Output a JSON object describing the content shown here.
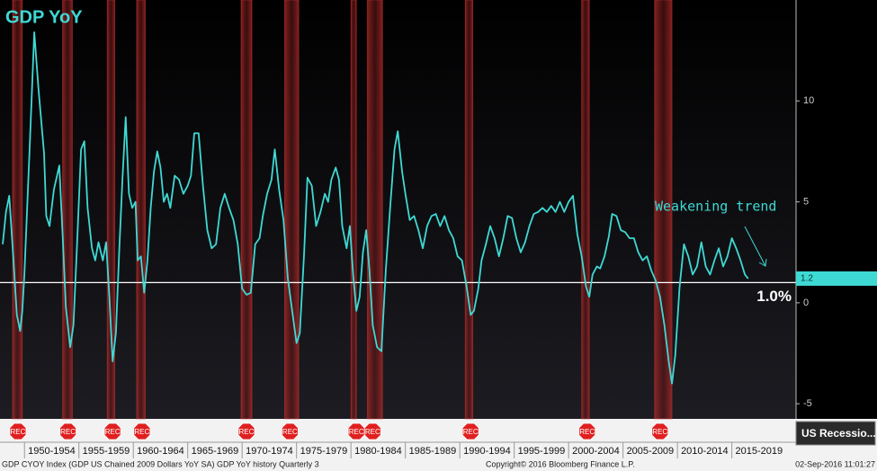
{
  "chart_data": {
    "type": "line",
    "title": "GDP YoY",
    "color": "#3fd9d4",
    "x": [
      1948.0,
      1948.3,
      1948.6,
      1949.0,
      1949.3,
      1949.6,
      1949.8,
      1950.0,
      1950.5,
      1950.9,
      1951.3,
      1951.8,
      1952.0,
      1952.3,
      1952.7,
      1953.2,
      1953.5,
      1953.8,
      1954.2,
      1954.5,
      1954.8,
      1955.2,
      1955.5,
      1955.8,
      1956.2,
      1956.5,
      1956.8,
      1957.2,
      1957.5,
      1957.8,
      1958.1,
      1958.4,
      1958.7,
      1959.0,
      1959.3,
      1959.6,
      1959.9,
      1960.2,
      1960.4,
      1960.7,
      1961.0,
      1961.3,
      1961.6,
      1961.9,
      1962.2,
      1962.5,
      1962.8,
      1963.1,
      1963.4,
      1963.8,
      1964.2,
      1964.6,
      1965.0,
      1965.3,
      1965.6,
      1966.0,
      1966.4,
      1966.8,
      1967.2,
      1967.6,
      1968.0,
      1968.4,
      1968.8,
      1969.2,
      1969.6,
      1970.0,
      1970.4,
      1970.8,
      1971.2,
      1971.6,
      1971.9,
      1972.3,
      1972.7,
      1973.0,
      1973.4,
      1973.8,
      1974.2,
      1974.6,
      1975.0,
      1975.3,
      1975.7,
      1976.0,
      1976.4,
      1976.8,
      1977.2,
      1977.6,
      1977.9,
      1978.2,
      1978.6,
      1978.9,
      1979.2,
      1979.6,
      1979.9,
      1980.2,
      1980.5,
      1980.8,
      1981.1,
      1981.4,
      1981.7,
      1982.0,
      1982.4,
      1982.8,
      1983.2,
      1983.6,
      1984.0,
      1984.3,
      1984.7,
      1985.0,
      1985.4,
      1985.8,
      1986.2,
      1986.6,
      1987.0,
      1987.4,
      1987.8,
      1988.2,
      1988.6,
      1989.0,
      1989.4,
      1989.8,
      1990.2,
      1990.6,
      1991.0,
      1991.3,
      1991.7,
      1992.0,
      1992.4,
      1992.8,
      1993.2,
      1993.6,
      1994.0,
      1994.4,
      1994.8,
      1995.2,
      1995.6,
      1996.0,
      1996.4,
      1996.8,
      1997.2,
      1997.6,
      1998.0,
      1998.4,
      1998.8,
      1999.2,
      1999.6,
      2000.0,
      2000.4,
      2000.8,
      2001.2,
      2001.6,
      2001.9,
      2002.2,
      2002.6,
      2002.9,
      2003.3,
      2003.7,
      2004.0,
      2004.4,
      2004.8,
      2005.2,
      2005.6,
      2006.0,
      2006.4,
      2006.8,
      2007.2,
      2007.6,
      2008.0,
      2008.4,
      2008.8,
      2009.2,
      2009.5,
      2009.8,
      2010.2,
      2010.6,
      2011.0,
      2011.4,
      2011.8,
      2012.2,
      2012.6,
      2013.0,
      2013.4,
      2013.8,
      2014.2,
      2014.6,
      2015.0,
      2015.4,
      2015.8,
      2016.2,
      2016.5
    ],
    "values": [
      2.9,
      4.5,
      5.3,
      2.0,
      -0.6,
      -1.4,
      -0.4,
      1.5,
      8.0,
      13.4,
      10.5,
      7.4,
      4.3,
      3.8,
      5.6,
      6.8,
      3.4,
      -0.2,
      -2.2,
      -1.1,
      2.5,
      7.6,
      8.0,
      4.7,
      2.7,
      2.1,
      3.0,
      2.1,
      3.0,
      0.3,
      -2.9,
      -1.5,
      2.5,
      6.1,
      9.2,
      5.4,
      4.7,
      5.0,
      2.1,
      2.3,
      0.5,
      2.1,
      4.7,
      6.5,
      7.5,
      6.7,
      5.0,
      5.4,
      4.7,
      6.3,
      6.1,
      5.4,
      5.8,
      6.3,
      8.4,
      8.4,
      5.8,
      3.6,
      2.7,
      2.9,
      4.7,
      5.4,
      4.7,
      4.1,
      2.9,
      0.7,
      0.4,
      0.5,
      2.9,
      3.2,
      4.3,
      5.4,
      6.1,
      7.6,
      5.6,
      4.1,
      1.2,
      -0.4,
      -2.0,
      -1.5,
      2.5,
      6.2,
      5.8,
      3.8,
      4.5,
      5.4,
      5.0,
      6.1,
      6.7,
      6.1,
      3.8,
      2.7,
      3.8,
      1.4,
      -0.4,
      0.3,
      2.5,
      3.6,
      1.6,
      -1.1,
      -2.2,
      -2.4,
      1.6,
      4.7,
      7.6,
      8.5,
      6.5,
      5.4,
      4.1,
      4.3,
      3.6,
      2.7,
      3.8,
      4.3,
      4.4,
      3.8,
      4.3,
      3.6,
      3.2,
      2.3,
      2.1,
      0.9,
      -0.6,
      -0.4,
      0.7,
      2.1,
      2.9,
      3.8,
      3.2,
      2.3,
      3.2,
      4.3,
      4.2,
      3.2,
      2.5,
      3.0,
      3.8,
      4.4,
      4.5,
      4.7,
      4.5,
      4.8,
      4.5,
      5.0,
      4.5,
      5.0,
      5.3,
      3.4,
      2.3,
      0.8,
      0.3,
      1.4,
      1.8,
      1.7,
      2.3,
      3.3,
      4.4,
      4.3,
      3.6,
      3.5,
      3.2,
      3.2,
      2.5,
      2.1,
      2.3,
      1.6,
      1.1,
      0.3,
      -1.1,
      -2.9,
      -4.0,
      -2.6,
      0.8,
      2.9,
      2.3,
      1.4,
      1.8,
      3.0,
      1.8,
      1.4,
      2.1,
      2.7,
      1.8,
      2.3,
      3.2,
      2.7,
      2.1,
      1.4,
      1.2
    ],
    "xlim": [
      1947.75,
      2020.9
    ],
    "ylim": [
      -5.75,
      15
    ],
    "yticks": [
      -5,
      0,
      5,
      10
    ],
    "xticks": [
      {
        "value": 1950,
        "label": "1950-1954"
      },
      {
        "value": 1955,
        "label": "1955-1959"
      },
      {
        "value": 1960,
        "label": "1960-1964"
      },
      {
        "value": 1965,
        "label": "1965-1969"
      },
      {
        "value": 1970,
        "label": "1970-1974"
      },
      {
        "value": 1975,
        "label": "1975-1979"
      },
      {
        "value": 1980,
        "label": "1980-1984"
      },
      {
        "value": 1985,
        "label": "1985-1989"
      },
      {
        "value": 1990,
        "label": "1990-1994"
      },
      {
        "value": 1995,
        "label": "1995-1999"
      },
      {
        "value": 2000,
        "label": "2000-2004"
      },
      {
        "value": 2005,
        "label": "2005-2009"
      },
      {
        "value": 2010,
        "label": "2010-2014"
      },
      {
        "value": 2015,
        "label": "2015-2019"
      }
    ],
    "recessions": [
      {
        "start": 1948.9,
        "end": 1949.8,
        "label": "REC"
      },
      {
        "start": 1953.5,
        "end": 1954.4,
        "label": "REC"
      },
      {
        "start": 1957.6,
        "end": 1958.3,
        "label": "REC"
      },
      {
        "start": 1960.3,
        "end": 1961.1,
        "label": "REC"
      },
      {
        "start": 1969.9,
        "end": 1970.9,
        "label": "REC"
      },
      {
        "start": 1973.9,
        "end": 1975.2,
        "label": "REC"
      },
      {
        "start": 1980.0,
        "end": 1980.5,
        "label": "REC"
      },
      {
        "start": 1981.5,
        "end": 1982.9,
        "label": "REC"
      },
      {
        "start": 1990.5,
        "end": 1991.2,
        "label": "REC"
      },
      {
        "start": 2001.2,
        "end": 2001.9,
        "label": "REC"
      },
      {
        "start": 2007.9,
        "end": 2009.5,
        "label": "REC"
      }
    ],
    "reference_line": {
      "value": 1,
      "label": "1.0%"
    },
    "annotation": "Weakening trend",
    "legend_label": "US Recessio...",
    "footer": {
      "source": "GDP CYOY Index (GDP US Chained 2009 Dollars YoY SA) GDP YoY history  Quarterly 3",
      "copyright": "Copyright© 2016 Bloomberg Finance L.P.",
      "timestamp": "02-Sep-2016 11:01:27"
    }
  }
}
